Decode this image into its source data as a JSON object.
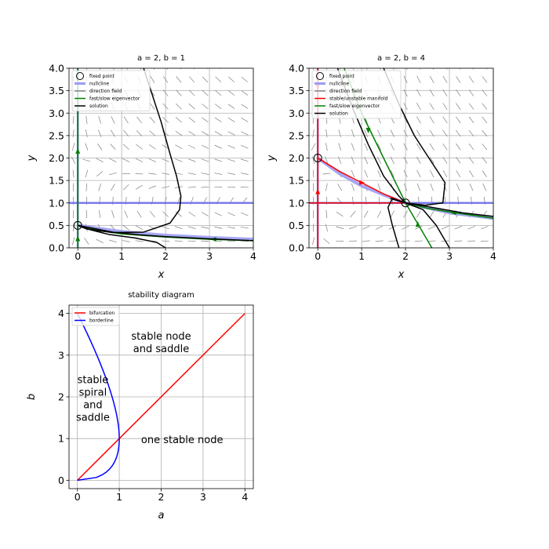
{
  "chart_data": [
    {
      "id": "p1",
      "type": "phase_portrait",
      "title": "a = 2, b = 1",
      "xlabel": "x",
      "ylabel": "y",
      "xlim": [
        -0.2,
        4
      ],
      "ylim": [
        0,
        4
      ],
      "xticks": [
        "0",
        "1",
        "2",
        "3",
        "4"
      ],
      "yticks": [
        "0.0",
        "0.5",
        "1.0",
        "1.5",
        "2.0",
        "2.5",
        "3.0",
        "3.5",
        "4.0"
      ],
      "grid": true,
      "legend_position": "top-left",
      "legend": [
        {
          "label": "fixed point",
          "kind": "circle",
          "color": "#000000"
        },
        {
          "label": "nullcline",
          "kind": "line",
          "color": "#9c9cf2"
        },
        {
          "label": "direction field",
          "kind": "line",
          "color": "#7f7f7f"
        },
        {
          "label": "fast/slow eigenvector",
          "kind": "line",
          "color": "#008000"
        },
        {
          "label": "solution",
          "kind": "line",
          "color": "#000000"
        }
      ],
      "fixed_points": [
        [
          0,
          0.5
        ]
      ],
      "nullclines": [
        {
          "color": "#7070f0",
          "points": [
            [
              -0.2,
              1
            ],
            [
              4,
              1
            ]
          ]
        },
        {
          "color": "#7070f0",
          "points": [
            [
              0,
              0
            ],
            [
              0,
              4
            ]
          ]
        },
        {
          "color": "#9c9cf2",
          "points": [
            [
              0,
              0.5
            ],
            [
              1,
              0.36
            ],
            [
              2,
              0.28
            ],
            [
              3,
              0.23
            ],
            [
              4,
              0.19
            ]
          ]
        }
      ],
      "eigenvectors": [
        {
          "color": "#008000",
          "points": [
            [
              0,
              0
            ],
            [
              0,
              4
            ]
          ],
          "arrows": [
            [
              0,
              0.2,
              "up"
            ],
            [
              0,
              2.15,
              "up"
            ]
          ]
        },
        {
          "color": "#008000",
          "points": [
            [
              0,
              0.5
            ],
            [
              0.5,
              0.38
            ],
            [
              1,
              0.31
            ],
            [
              2,
              0.24
            ],
            [
              3,
              0.19
            ],
            [
              4,
              0.16
            ]
          ],
          "arrows": [
            [
              3.1,
              0.19,
              "left"
            ]
          ]
        }
      ],
      "solutions": [
        [
          [
            1.5,
            4.0
          ],
          [
            1.9,
            2.8
          ],
          [
            2.1,
            2.1
          ],
          [
            2.25,
            1.6
          ],
          [
            2.35,
            1.15
          ],
          [
            2.32,
            0.85
          ],
          [
            2.1,
            0.55
          ],
          [
            1.5,
            0.35
          ],
          [
            0.8,
            0.34
          ],
          [
            0.2,
            0.42
          ],
          [
            0.0,
            0.5
          ]
        ],
        [
          [
            2.0,
            0.0
          ],
          [
            1.8,
            0.12
          ],
          [
            1.3,
            0.22
          ],
          [
            0.7,
            0.3
          ],
          [
            0.3,
            0.4
          ],
          [
            0.05,
            0.48
          ]
        ],
        [
          [
            0.0,
            0.5
          ],
          [
            0.8,
            0.35
          ],
          [
            1.4,
            0.29
          ],
          [
            2.0,
            0.25
          ],
          [
            3.0,
            0.2
          ],
          [
            4.0,
            0.16
          ]
        ]
      ],
      "field": "p1"
    },
    {
      "id": "p2",
      "type": "phase_portrait",
      "title": "a = 2, b = 4",
      "xlabel": "x",
      "ylabel": "y",
      "xlim": [
        -0.2,
        4
      ],
      "ylim": [
        0,
        4
      ],
      "xticks": [
        "0",
        "1",
        "2",
        "3",
        "4"
      ],
      "yticks": [
        "0.0",
        "0.5",
        "1.0",
        "1.5",
        "2.0",
        "2.5",
        "3.0",
        "3.5",
        "4.0"
      ],
      "grid": true,
      "legend_position": "top-left",
      "legend": [
        {
          "label": "fixed point",
          "kind": "circle",
          "color": "#000000"
        },
        {
          "label": "nullcline",
          "kind": "line",
          "color": "#9c9cf2"
        },
        {
          "label": "direction field",
          "kind": "line",
          "color": "#7f7f7f"
        },
        {
          "label": "stable/unstable manifold",
          "kind": "line",
          "color": "#ff0000"
        },
        {
          "label": "fast/slow eigenvector",
          "kind": "line",
          "color": "#008000"
        },
        {
          "label": "solution",
          "kind": "line",
          "color": "#000000"
        }
      ],
      "fixed_points": [
        [
          0,
          2
        ],
        [
          2,
          1
        ]
      ],
      "nullclines": [
        {
          "color": "#7070f0",
          "points": [
            [
              -0.2,
              1
            ],
            [
              4,
              1
            ]
          ]
        },
        {
          "color": "#7070f0",
          "points": [
            [
              0,
              0
            ],
            [
              0,
              4
            ]
          ]
        },
        {
          "color": "#9c9cf2",
          "points": [
            [
              0,
              2
            ],
            [
              0.5,
              1.65
            ],
            [
              1,
              1.38
            ],
            [
              1.5,
              1.18
            ],
            [
              2,
              1
            ],
            [
              3,
              0.78
            ],
            [
              4,
              0.66
            ]
          ]
        }
      ],
      "manifolds": [
        {
          "color": "#ff0000",
          "points": [
            [
              0,
              0
            ],
            [
              0,
              4
            ]
          ],
          "arrows": [
            [
              0,
              1.25,
              "up"
            ],
            [
              0,
              3.6,
              "down"
            ]
          ]
        },
        {
          "color": "#ff0000",
          "points": [
            [
              0,
              2
            ],
            [
              0.5,
              1.7
            ],
            [
              1,
              1.45
            ],
            [
              1.5,
              1.2
            ],
            [
              2,
              1
            ]
          ],
          "arrows": [
            [
              1.0,
              1.45,
              "right"
            ]
          ]
        },
        {
          "color": "#ff0000",
          "points": [
            [
              -0.2,
              1
            ],
            [
              2,
              1
            ]
          ]
        }
      ],
      "eigenvectors": [
        {
          "color": "#008000",
          "points": [
            [
              0.6,
              4.0
            ],
            [
              1.0,
              3.0
            ],
            [
              1.5,
              2.0
            ],
            [
              2.0,
              1.0
            ],
            [
              2.3,
              0.5
            ],
            [
              2.6,
              0.0
            ]
          ],
          "arrows": [
            [
              1.15,
              2.62,
              "down"
            ],
            [
              2.28,
              0.52,
              "up"
            ]
          ]
        },
        {
          "color": "#008000",
          "points": [
            [
              2.0,
              1.0
            ],
            [
              2.5,
              0.88
            ],
            [
              3.0,
              0.8
            ],
            [
              4.0,
              0.66
            ]
          ],
          "arrows": [
            [
              3.1,
              0.78,
              "left"
            ]
          ]
        }
      ],
      "solutions": [
        [
          [
            0.45,
            4.0
          ],
          [
            0.8,
            3.1
          ],
          [
            1.15,
            2.3
          ],
          [
            1.5,
            1.6
          ],
          [
            1.85,
            1.15
          ],
          [
            2.0,
            1.0
          ]
        ],
        [
          [
            1.5,
            4.0
          ],
          [
            1.85,
            3.2
          ],
          [
            2.2,
            2.5
          ],
          [
            2.6,
            1.9
          ],
          [
            2.9,
            1.45
          ],
          [
            2.85,
            1.0
          ],
          [
            2.45,
            0.95
          ],
          [
            2.0,
            1.0
          ]
        ],
        [
          [
            3.0,
            0.0
          ],
          [
            2.7,
            0.5
          ],
          [
            2.4,
            0.85
          ],
          [
            2.0,
            1.0
          ],
          [
            1.7,
            1.1
          ],
          [
            1.6,
            0.9
          ],
          [
            1.7,
            0.5
          ],
          [
            1.85,
            0.0
          ]
        ],
        [
          [
            1.65,
            1.1
          ],
          [
            2.0,
            1.0
          ],
          [
            2.5,
            0.92
          ],
          [
            3.3,
            0.78
          ],
          [
            4.0,
            0.7
          ]
        ]
      ],
      "field": "p2"
    },
    {
      "id": "p3",
      "type": "line",
      "title": "stability diagram",
      "xlabel": "a",
      "ylabel": "b",
      "xlim": [
        -0.2,
        4.2
      ],
      "ylim": [
        -0.2,
        4.2
      ],
      "xticks": [
        "0",
        "1",
        "2",
        "3",
        "4"
      ],
      "yticks": [
        "0",
        "1",
        "2",
        "3",
        "4"
      ],
      "grid": true,
      "legend_position": "top-left",
      "series": [
        {
          "name": "bifurcation",
          "color": "#ff0000",
          "points": [
            [
              0,
              0
            ],
            [
              4,
              4
            ]
          ]
        },
        {
          "name": "borderline",
          "color": "#0000ff",
          "curve": "a = 2*sqrt(b) - b",
          "points": []
        }
      ],
      "annotations": [
        {
          "text": [
            "stable node",
            "and saddle"
          ],
          "at": [
            2.0,
            3.3
          ]
        },
        {
          "text": [
            "stable",
            "spiral",
            "and",
            "saddle"
          ],
          "at": [
            0.37,
            1.95
          ]
        },
        {
          "text": [
            "one stable node"
          ],
          "at": [
            2.5,
            0.97
          ]
        }
      ]
    }
  ]
}
